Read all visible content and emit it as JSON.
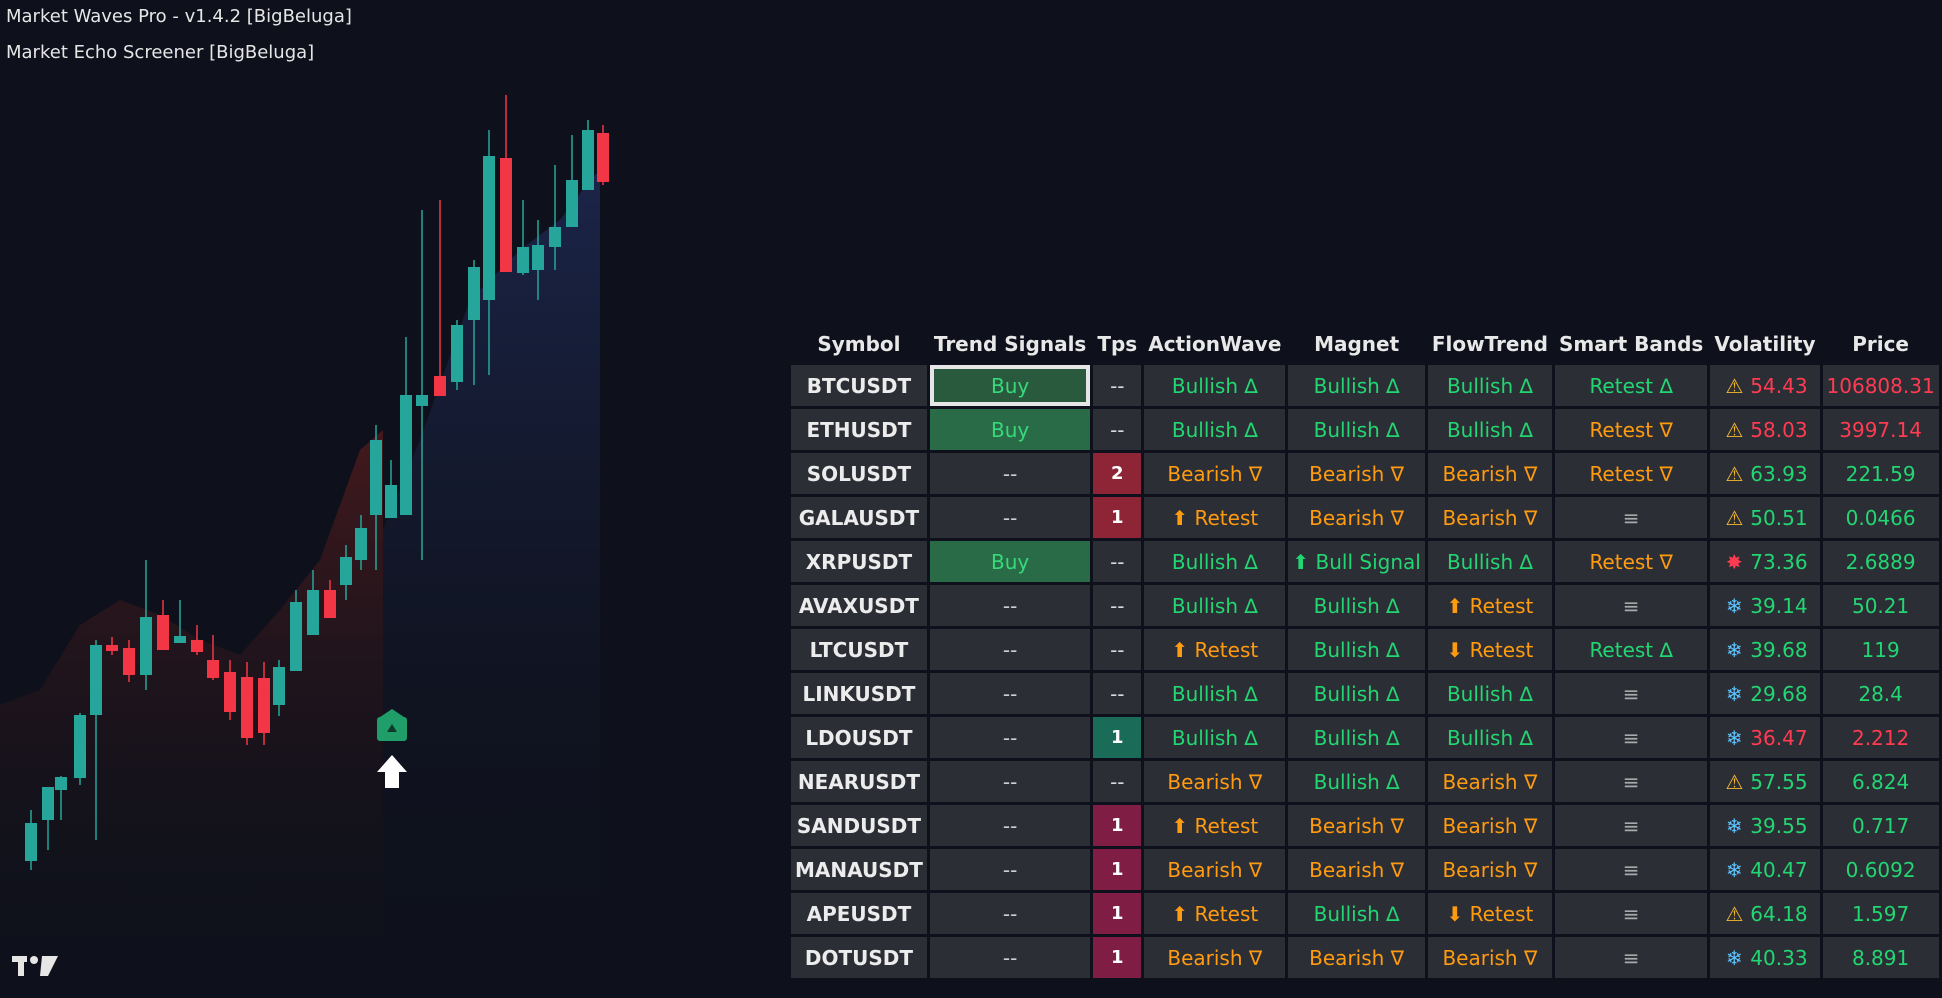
{
  "legend": {
    "indicator_1": "Market Waves Pro - v1.4.2 [BigBeluga]",
    "indicator_2": "Market Echo Screener [BigBeluga]"
  },
  "colors": {
    "background": "#0e111b",
    "bull": "#26a69a",
    "bear": "#f23645",
    "signal_green": "#22d672",
    "signal_orange": "#ff9b0f",
    "signal_red": "#ff3b52"
  },
  "icons": {
    "warning": "warning-icon",
    "snowflake": "snowflake-icon",
    "explosion": "explosion-icon",
    "buy_arrow": "up-arrow-icon",
    "signal_marker": "signal-marker-icon",
    "logo": "tradingview-logo"
  },
  "screener": {
    "headers": [
      "Symbol",
      "Trend Signals",
      "Tps",
      "ActionWave",
      "Magnet",
      "FlowTrend",
      "Smart Bands",
      "Volatility",
      "Price"
    ],
    "rows": [
      {
        "symbol": "BTCUSDT",
        "signal": "Buy",
        "tps": "--",
        "action": "Bullish ∆",
        "magnet": "Bullish ∆",
        "flow": "Bullish ∆",
        "bands": "Retest ∆",
        "vol_icon": "⚠",
        "vol": "54.43",
        "price": "106808.31"
      },
      {
        "symbol": "ETHUSDT",
        "signal": "Buy",
        "tps": "--",
        "action": "Bullish ∆",
        "magnet": "Bullish ∆",
        "flow": "Bullish ∆",
        "bands": "Retest ∇",
        "vol_icon": "⚠",
        "vol": "58.03",
        "price": "3997.14"
      },
      {
        "symbol": "SOLUSDT",
        "signal": "--",
        "tps": "2",
        "action": "Bearish ∇",
        "magnet": "Bearish ∇",
        "flow": "Bearish ∇",
        "bands": "Retest ∇",
        "vol_icon": "⚠",
        "vol": "63.93",
        "price": "221.59"
      },
      {
        "symbol": "GALAUSDT",
        "signal": "--",
        "tps": "1",
        "action": "⬆ Retest",
        "magnet": "Bearish ∇",
        "flow": "Bearish ∇",
        "bands": "≡",
        "vol_icon": "⚠",
        "vol": "50.51",
        "price": "0.0466"
      },
      {
        "symbol": "XRPUSDT",
        "signal": "Buy",
        "tps": "--",
        "action": "Bullish ∆",
        "magnet": "⬆ Bull Signal",
        "flow": "Bullish ∆",
        "bands": "Retest ∇",
        "vol_icon": "✸",
        "vol": "73.36",
        "price": "2.6889"
      },
      {
        "symbol": "AVAXUSDT",
        "signal": "--",
        "tps": "--",
        "action": "Bullish ∆",
        "magnet": "Bullish ∆",
        "flow": "⬆ Retest",
        "bands": "≡",
        "vol_icon": "❄",
        "vol": "39.14",
        "price": "50.21"
      },
      {
        "symbol": "LTCUSDT",
        "signal": "--",
        "tps": "--",
        "action": "⬆ Retest",
        "magnet": "Bullish ∆",
        "flow": "⬇ Retest",
        "bands": "Retest ∆",
        "vol_icon": "❄",
        "vol": "39.68",
        "price": "119"
      },
      {
        "symbol": "LINKUSDT",
        "signal": "--",
        "tps": "--",
        "action": "Bullish ∆",
        "magnet": "Bullish ∆",
        "flow": "Bullish ∆",
        "bands": "≡",
        "vol_icon": "❄",
        "vol": "29.68",
        "price": "28.4"
      },
      {
        "symbol": "LDOUSDT",
        "signal": "--",
        "tps": "1",
        "action": "Bullish ∆",
        "magnet": "Bullish ∆",
        "flow": "Bullish ∆",
        "bands": "≡",
        "vol_icon": "❄",
        "vol": "36.47",
        "price": "2.212"
      },
      {
        "symbol": "NEARUSDT",
        "signal": "--",
        "tps": "--",
        "action": "Bearish ∇",
        "magnet": "Bullish ∆",
        "flow": "Bearish ∇",
        "bands": "≡",
        "vol_icon": "⚠",
        "vol": "57.55",
        "price": "6.824"
      },
      {
        "symbol": "SANDUSDT",
        "signal": "--",
        "tps": "1",
        "action": "⬆ Retest",
        "magnet": "Bearish ∇",
        "flow": "Bearish ∇",
        "bands": "≡",
        "vol_icon": "❄",
        "vol": "39.55",
        "price": "0.717"
      },
      {
        "symbol": "MANAUSDT",
        "signal": "--",
        "tps": "1",
        "action": "Bearish ∇",
        "magnet": "Bearish ∇",
        "flow": "Bearish ∇",
        "bands": "≡",
        "vol_icon": "❄",
        "vol": "40.47",
        "price": "0.6092"
      },
      {
        "symbol": "APEUSDT",
        "signal": "--",
        "tps": "1",
        "action": "⬆ Retest",
        "magnet": "Bullish ∆",
        "flow": "⬇ Retest",
        "bands": "≡",
        "vol_icon": "⚠",
        "vol": "64.18",
        "price": "1.597"
      },
      {
        "symbol": "DOTUSDT",
        "signal": "--",
        "tps": "1",
        "action": "Bearish ∇",
        "magnet": "Bearish ∇",
        "flow": "Bearish ∇",
        "bands": "≡",
        "vol_icon": "❄",
        "vol": "40.33",
        "price": "8.891"
      }
    ]
  }
}
